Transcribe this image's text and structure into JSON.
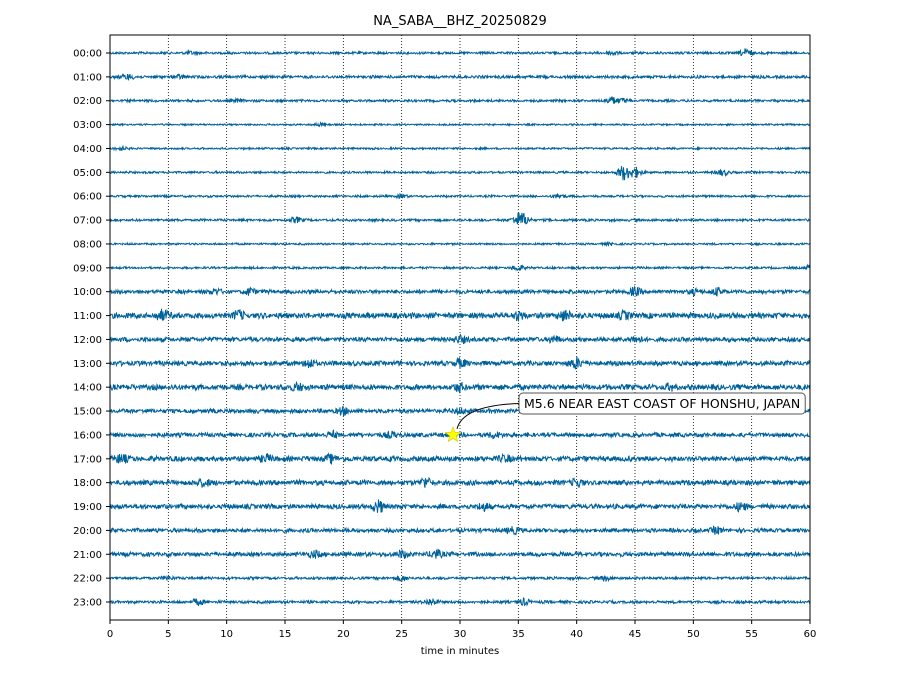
{
  "chart_data": {
    "type": "line",
    "title": "NA_SABA__BHZ_20250829",
    "xlabel": "time in minutes",
    "ylabel": "",
    "xlim": [
      0,
      60
    ],
    "x_ticks": [
      0,
      5,
      10,
      15,
      20,
      25,
      30,
      35,
      40,
      45,
      50,
      55,
      60
    ],
    "grid": "vertical dotted",
    "trace_color": "#00629b",
    "rows": [
      {
        "label": "00:00",
        "base": 1.0,
        "bursts": [
          [
            7,
            0.6
          ],
          [
            43,
            0.8
          ],
          [
            54.5,
            1.6
          ]
        ]
      },
      {
        "label": "01:00",
        "base": 1.2,
        "bursts": [
          [
            1.5,
            1.1
          ],
          [
            6,
            0.7
          ]
        ]
      },
      {
        "label": "02:00",
        "base": 1.0,
        "bursts": [
          [
            11,
            0.5
          ],
          [
            43,
            1.6
          ],
          [
            44,
            0.8
          ]
        ]
      },
      {
        "label": "03:00",
        "base": 0.7,
        "bursts": [
          [
            18,
            0.6
          ]
        ]
      },
      {
        "label": "04:00",
        "base": 0.8,
        "bursts": [
          [
            1,
            0.8
          ]
        ]
      },
      {
        "label": "05:00",
        "base": 0.9,
        "bursts": [
          [
            44,
            3.2
          ],
          [
            45,
            2.4
          ],
          [
            52.5,
            1.4
          ]
        ]
      },
      {
        "label": "06:00",
        "base": 0.9,
        "bursts": [
          [
            25,
            0.7
          ],
          [
            38.5,
            1.0
          ]
        ]
      },
      {
        "label": "07:00",
        "base": 1.0,
        "bursts": [
          [
            16,
            1.2
          ],
          [
            35,
            2.4
          ],
          [
            35.5,
            1.8
          ]
        ]
      },
      {
        "label": "08:00",
        "base": 0.8,
        "bursts": [
          [
            43,
            0.5
          ]
        ]
      },
      {
        "label": "09:00",
        "base": 0.9,
        "bursts": [
          [
            35,
            1.2
          ],
          [
            60,
            1.0
          ]
        ]
      },
      {
        "label": "10:00",
        "base": 1.6,
        "bursts": [
          [
            9,
            1.2
          ],
          [
            12,
            1.4
          ],
          [
            45,
            1.6
          ],
          [
            50,
            1.0
          ],
          [
            52,
            1.4
          ]
        ]
      },
      {
        "label": "11:00",
        "base": 2.4,
        "bursts": [
          [
            4.5,
            2.2
          ],
          [
            11,
            1.6
          ],
          [
            35,
            1.6
          ],
          [
            39,
            1.8
          ],
          [
            44,
            1.2
          ]
        ]
      },
      {
        "label": "12:00",
        "base": 1.9,
        "bursts": [
          [
            30,
            1.6
          ],
          [
            38,
            1.2
          ],
          [
            45,
            1.2
          ]
        ]
      },
      {
        "label": "13:00",
        "base": 2.0,
        "bursts": [
          [
            17,
            1.6
          ],
          [
            30,
            1.6
          ],
          [
            40,
            2.2
          ]
        ]
      },
      {
        "label": "14:00",
        "base": 2.3,
        "bursts": [
          [
            16,
            1.4
          ],
          [
            30,
            1.4
          ],
          [
            48,
            1.0
          ]
        ]
      },
      {
        "label": "15:00",
        "base": 1.8,
        "bursts": [
          [
            20,
            1.4
          ],
          [
            30,
            1.2
          ]
        ]
      },
      {
        "label": "16:00",
        "base": 1.8,
        "bursts": [
          [
            19,
            1.2
          ],
          [
            24,
            1.2
          ],
          [
            33,
            1.2
          ]
        ]
      },
      {
        "label": "17:00",
        "base": 2.2,
        "bursts": [
          [
            1,
            1.8
          ],
          [
            13.5,
            1.4
          ],
          [
            19,
            1.4
          ],
          [
            34,
            1.2
          ]
        ]
      },
      {
        "label": "18:00",
        "base": 2.1,
        "bursts": [
          [
            8,
            1.6
          ],
          [
            27,
            1.8
          ],
          [
            40,
            1.4
          ]
        ]
      },
      {
        "label": "19:00",
        "base": 2.0,
        "bursts": [
          [
            23,
            2.4
          ],
          [
            32,
            1.4
          ],
          [
            54,
            1.6
          ]
        ]
      },
      {
        "label": "20:00",
        "base": 1.7,
        "bursts": [
          [
            34.5,
            1.4
          ],
          [
            52,
            1.2
          ]
        ]
      },
      {
        "label": "21:00",
        "base": 1.8,
        "bursts": [
          [
            17.5,
            1.4
          ],
          [
            25,
            1.6
          ],
          [
            28,
            1.8
          ]
        ]
      },
      {
        "label": "22:00",
        "base": 1.1,
        "bursts": [
          [
            5,
            0.8
          ],
          [
            25,
            1.0
          ],
          [
            42.5,
            1.0
          ]
        ]
      },
      {
        "label": "23:00",
        "base": 1.2,
        "bursts": [
          [
            7.5,
            1.2
          ],
          [
            27.5,
            1.4
          ],
          [
            35.5,
            1.2
          ]
        ]
      }
    ],
    "event": {
      "row": "16:00",
      "x": 29.4,
      "marker": "star",
      "marker_color": "#ffff00"
    },
    "annotation": "M5.6 NEAR EAST COAST OF HONSHU, JAPAN"
  }
}
